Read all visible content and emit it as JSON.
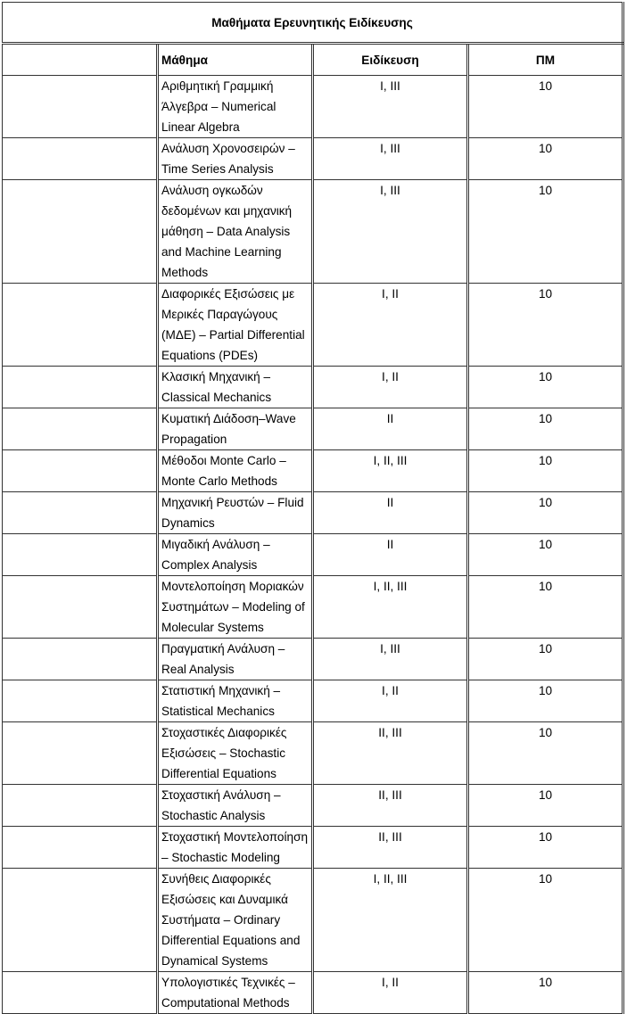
{
  "table": {
    "title": "Μαθήματα Ερευνητικής Ειδίκευσης",
    "headers": {
      "course": "Μάθημα",
      "specialization": "Ειδίκευση",
      "credits": "ΠΜ"
    },
    "rows": [
      {
        "course": "Αριθμητική Γραμμική Άλγεβρα – Numerical Linear Algebra",
        "specialization": "I, III",
        "credits": "10"
      },
      {
        "course": "Ανάλυση Χρονοσειρών – Time Series Analysis",
        "specialization": "I, III",
        "credits": "10"
      },
      {
        "course": "Ανάλυση ογκωδών δεδομένων και μηχανική μάθηση – Data Analysis and Machine Learning Methods",
        "specialization": "I, III",
        "credits": "10"
      },
      {
        "course": "Διαφορικές Εξισώσεις με Μερικές Παραγώγους (ΜΔΕ) – Partial Differential Equations (PDEs)",
        "specialization": "I, II",
        "credits": "10"
      },
      {
        "course": "Κλασική Μηχανική – Classical Mechanics",
        "specialization": "I, II",
        "credits": "10"
      },
      {
        "course": "Κυματική Διάδοση–Wave Propagation",
        "specialization": "II",
        "credits": "10"
      },
      {
        "course": "Μέθοδοι Monte Carlo – Monte Carlo Methods",
        "specialization": "I, II, III",
        "credits": "10"
      },
      {
        "course": "Μηχανική Ρευστών – Fluid Dynamics",
        "specialization": "II",
        "credits": "10"
      },
      {
        "course": "Μιγαδική Ανάλυση – Complex Analysis",
        "specialization": "II",
        "credits": "10"
      },
      {
        "course": "Μοντελοποίηση Μοριακών Συστημάτων – Modeling of Molecular Systems",
        "specialization": "I, II, III",
        "credits": "10"
      },
      {
        "course": "Πραγματική Ανάλυση – Real Analysis",
        "specialization": "I, III",
        "credits": "10"
      },
      {
        "course": "Στατιστική Μηχανική – Statistical Mechanics",
        "specialization": "I, II",
        "credits": "10"
      },
      {
        "course": "Στοχαστικές Διαφορικές Εξισώσεις – Stochastic Differential Equations",
        "specialization": "II, III",
        "credits": "10"
      },
      {
        "course": "Στοχαστική Ανάλυση – Stochastic Analysis",
        "specialization": "II, III",
        "credits": "10"
      },
      {
        "course": "Στοχαστική Μοντελοποίηση – Stochastic Modeling",
        "specialization": "II, III",
        "credits": "10"
      },
      {
        "course": "Συνήθεις Διαφορικές Εξισώσεις και Δυναμικά Συστήματα – Ordinary Differential Equations and Dynamical Systems",
        "specialization": "I, II, III",
        "credits": "10"
      },
      {
        "course": "Υπολογιστικές Τεχνικές – Computational Methods",
        "specialization": "I, II",
        "credits": "10"
      }
    ]
  }
}
